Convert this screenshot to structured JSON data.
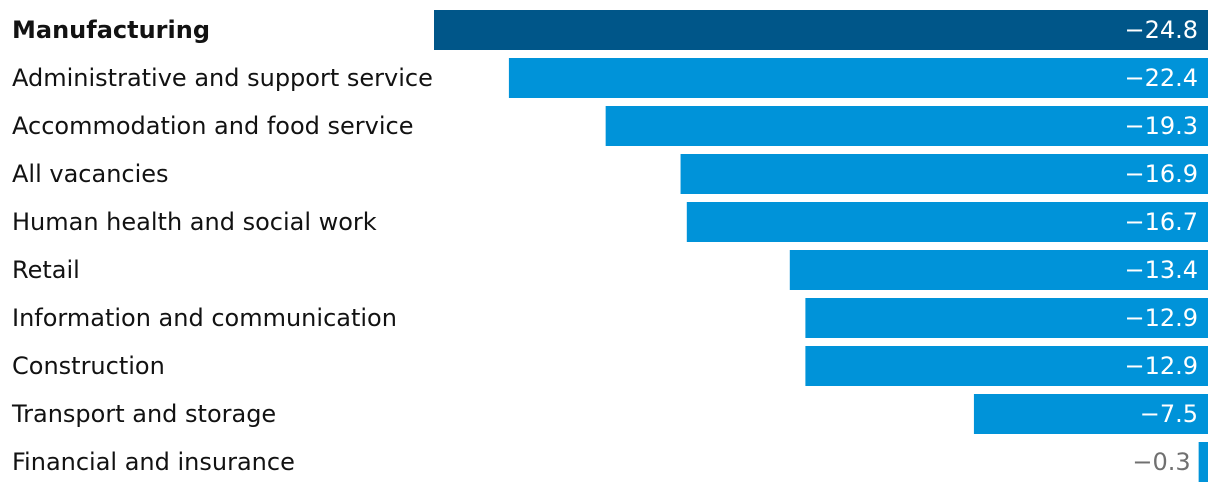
{
  "chart_data": {
    "type": "bar",
    "orientation": "horizontal",
    "categories": [
      "Manufacturing",
      "Administrative and support service",
      "Accommodation and food service",
      "All vacancies",
      "Human health and social work",
      "Retail",
      "Information and communication",
      "Construction",
      "Transport and storage",
      "Financial and insurance"
    ],
    "values": [
      -24.8,
      -22.4,
      -19.3,
      -16.9,
      -16.7,
      -13.4,
      -12.9,
      -12.9,
      -7.5,
      -0.3
    ],
    "value_labels": [
      "−24.8",
      "−22.4",
      "−19.3",
      "−16.9",
      "−16.7",
      "−13.4",
      "−12.9",
      "−12.9",
      "−7.5",
      "−0.3"
    ],
    "highlight": "Manufacturing",
    "xlim": [
      -24.8,
      0
    ],
    "grid": false,
    "legend": "none"
  },
  "colors": {
    "highlight_bar": "#005689",
    "bar": "#0093d9",
    "label_inside": "#ffffff",
    "label_outside": "#707070",
    "category_text": "#121212"
  }
}
